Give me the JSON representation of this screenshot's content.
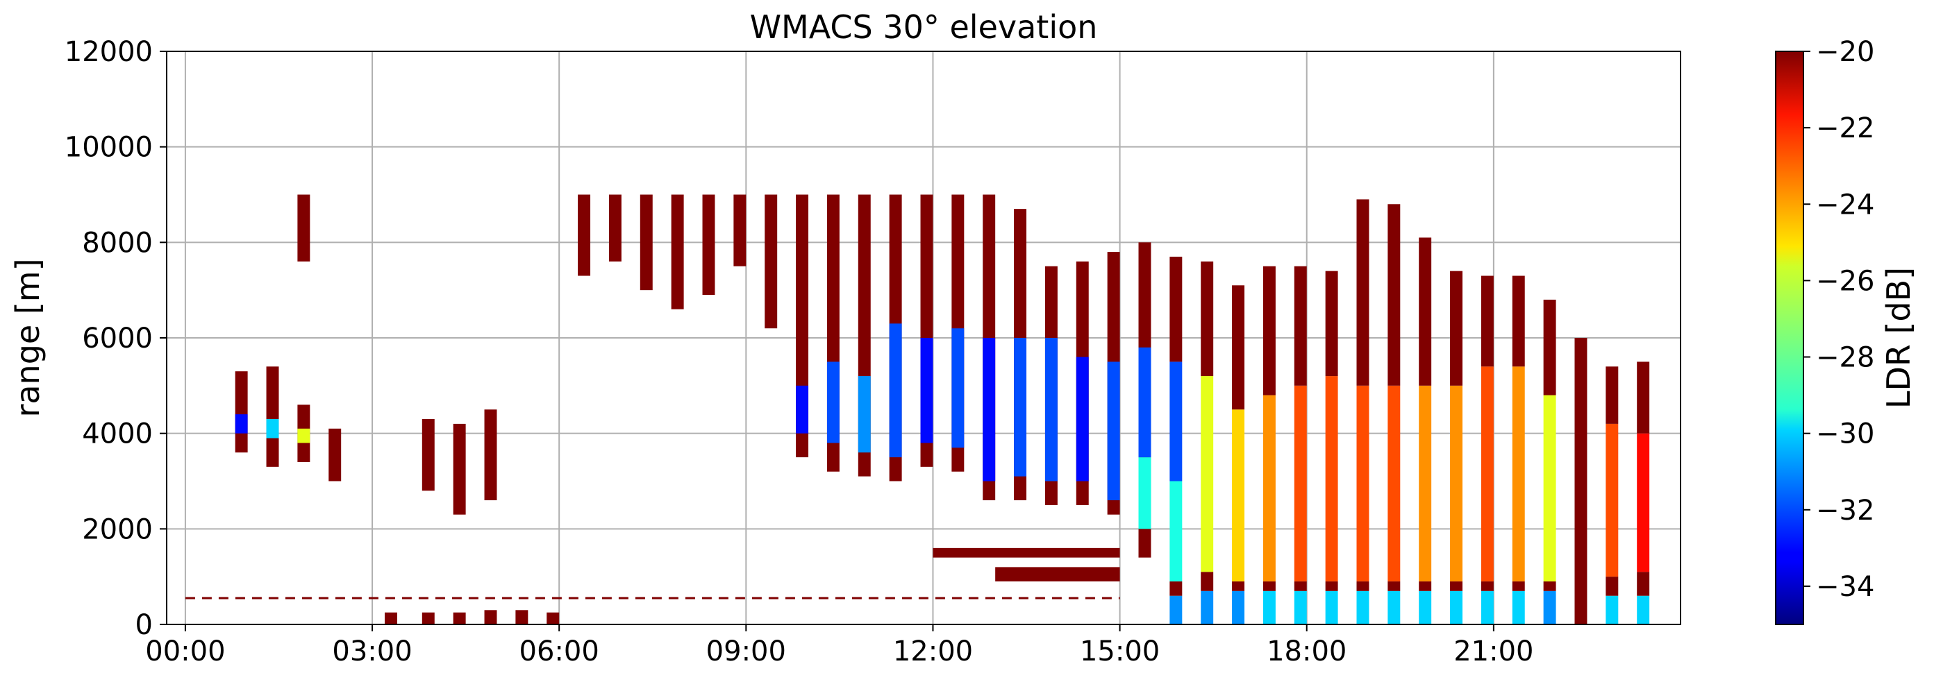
{
  "chart_data": {
    "type": "heatmap",
    "title": "WMACS 30° elevation",
    "xlabel": "",
    "ylabel": "range [m]",
    "xlim_hours": [
      -0.3,
      24.0
    ],
    "ylim": [
      0,
      12000
    ],
    "grid": true,
    "x_ticks": [
      {
        "hour": 0,
        "label": "00:00"
      },
      {
        "hour": 3,
        "label": "03:00"
      },
      {
        "hour": 6,
        "label": "06:00"
      },
      {
        "hour": 9,
        "label": "09:00"
      },
      {
        "hour": 12,
        "label": "12:00"
      },
      {
        "hour": 15,
        "label": "15:00"
      },
      {
        "hour": 18,
        "label": "18:00"
      },
      {
        "hour": 21,
        "label": "21:00"
      }
    ],
    "y_ticks": [
      {
        "value": 0,
        "label": "0"
      },
      {
        "value": 2000,
        "label": "2000"
      },
      {
        "value": 4000,
        "label": "4000"
      },
      {
        "value": 6000,
        "label": "6000"
      },
      {
        "value": 8000,
        "label": "8000"
      },
      {
        "value": 10000,
        "label": "10000"
      },
      {
        "value": 12000,
        "label": "12000"
      }
    ],
    "colorbar": {
      "label": "LDR [dB]",
      "vmin": -35,
      "vmax": -20,
      "colormap": "jet",
      "ticks": [
        {
          "value": -20,
          "label": "−20"
        },
        {
          "value": -22,
          "label": "−22"
        },
        {
          "value": -24,
          "label": "−24"
        },
        {
          "value": -26,
          "label": "−26"
        },
        {
          "value": -28,
          "label": "−28"
        },
        {
          "value": -30,
          "label": "−30"
        },
        {
          "value": -32,
          "label": "−32"
        },
        {
          "value": -34,
          "label": "−34"
        }
      ]
    },
    "clutter_line": {
      "range_m": 550,
      "from_hour": 0.0,
      "to_hour": 15.0,
      "value_db": -20
    },
    "low_echo_bands": [
      {
        "from_hour": 3.2,
        "to_hour": 3.4,
        "bottom": 0,
        "top": 250,
        "value_db": -20
      },
      {
        "from_hour": 3.8,
        "to_hour": 4.0,
        "bottom": 0,
        "top": 250,
        "value_db": -20
      },
      {
        "from_hour": 4.3,
        "to_hour": 4.5,
        "bottom": 0,
        "top": 250,
        "value_db": -20
      },
      {
        "from_hour": 4.8,
        "to_hour": 5.0,
        "bottom": 0,
        "top": 300,
        "value_db": -20
      },
      {
        "from_hour": 5.3,
        "to_hour": 5.5,
        "bottom": 0,
        "top": 300,
        "value_db": -20
      },
      {
        "from_hour": 5.8,
        "to_hour": 6.0,
        "bottom": 0,
        "top": 250,
        "value_db": -20
      },
      {
        "from_hour": 12.0,
        "to_hour": 15.0,
        "bottom": 1400,
        "top": 1600,
        "value_db": -20
      },
      {
        "from_hour": 13.0,
        "to_hour": 15.0,
        "bottom": 900,
        "top": 1200,
        "value_db": -20
      }
    ],
    "profiles": [
      {
        "from_hour": 0.8,
        "to_hour": 1.0,
        "segments": [
          {
            "bottom": 3600,
            "top": 5300,
            "value_db": -20
          },
          {
            "bottom": 4000,
            "top": 4400,
            "value_db": -33
          }
        ]
      },
      {
        "from_hour": 1.3,
        "to_hour": 1.5,
        "segments": [
          {
            "bottom": 3300,
            "top": 5400,
            "value_db": -20
          },
          {
            "bottom": 3900,
            "top": 4300,
            "value_db": -30
          }
        ]
      },
      {
        "from_hour": 1.8,
        "to_hour": 2.0,
        "segments": [
          {
            "bottom": 3400,
            "top": 4600,
            "value_db": -20
          },
          {
            "bottom": 3800,
            "top": 4100,
            "value_db": -26
          },
          {
            "bottom": 7600,
            "top": 9000,
            "value_db": -20
          }
        ]
      },
      {
        "from_hour": 2.3,
        "to_hour": 2.5,
        "segments": [
          {
            "bottom": 3000,
            "top": 4100,
            "value_db": -20
          }
        ]
      },
      {
        "from_hour": 3.8,
        "to_hour": 4.0,
        "segments": [
          {
            "bottom": 2800,
            "top": 4300,
            "value_db": -20
          }
        ]
      },
      {
        "from_hour": 4.3,
        "to_hour": 4.5,
        "segments": [
          {
            "bottom": 2300,
            "top": 4200,
            "value_db": -20
          }
        ]
      },
      {
        "from_hour": 4.8,
        "to_hour": 5.0,
        "segments": [
          {
            "bottom": 2600,
            "top": 4500,
            "value_db": -20
          }
        ]
      },
      {
        "from_hour": 6.3,
        "to_hour": 6.5,
        "segments": [
          {
            "bottom": 7300,
            "top": 9000,
            "value_db": -20
          }
        ]
      },
      {
        "from_hour": 6.8,
        "to_hour": 7.0,
        "segments": [
          {
            "bottom": 7600,
            "top": 9000,
            "value_db": -20
          }
        ]
      },
      {
        "from_hour": 7.3,
        "to_hour": 7.5,
        "segments": [
          {
            "bottom": 7000,
            "top": 9000,
            "value_db": -20
          }
        ]
      },
      {
        "from_hour": 7.8,
        "to_hour": 8.0,
        "segments": [
          {
            "bottom": 6600,
            "top": 9000,
            "value_db": -20
          }
        ]
      },
      {
        "from_hour": 8.3,
        "to_hour": 8.5,
        "segments": [
          {
            "bottom": 6900,
            "top": 9000,
            "value_db": -20
          }
        ]
      },
      {
        "from_hour": 8.8,
        "to_hour": 9.0,
        "segments": [
          {
            "bottom": 7500,
            "top": 9000,
            "value_db": -20
          }
        ]
      },
      {
        "from_hour": 9.3,
        "to_hour": 9.5,
        "segments": [
          {
            "bottom": 6200,
            "top": 9000,
            "value_db": -20
          }
        ]
      },
      {
        "from_hour": 9.8,
        "to_hour": 10.0,
        "segments": [
          {
            "bottom": 3500,
            "top": 9000,
            "value_db": -20
          },
          {
            "bottom": 4000,
            "top": 5000,
            "value_db": -33
          }
        ]
      },
      {
        "from_hour": 10.3,
        "to_hour": 10.5,
        "segments": [
          {
            "bottom": 3200,
            "top": 9000,
            "value_db": -20
          },
          {
            "bottom": 3800,
            "top": 5500,
            "value_db": -32
          }
        ]
      },
      {
        "from_hour": 10.8,
        "to_hour": 11.0,
        "segments": [
          {
            "bottom": 3100,
            "top": 9000,
            "value_db": -20
          },
          {
            "bottom": 3600,
            "top": 5200,
            "value_db": -31
          }
        ]
      },
      {
        "from_hour": 11.3,
        "to_hour": 11.5,
        "segments": [
          {
            "bottom": 3000,
            "top": 9000,
            "value_db": -20
          },
          {
            "bottom": 3500,
            "top": 6300,
            "value_db": -32
          }
        ]
      },
      {
        "from_hour": 11.8,
        "to_hour": 12.0,
        "segments": [
          {
            "bottom": 3300,
            "top": 9000,
            "value_db": -20
          },
          {
            "bottom": 3800,
            "top": 6000,
            "value_db": -33
          }
        ]
      },
      {
        "from_hour": 12.3,
        "to_hour": 12.5,
        "segments": [
          {
            "bottom": 3200,
            "top": 9000,
            "value_db": -20
          },
          {
            "bottom": 3700,
            "top": 6200,
            "value_db": -32
          }
        ]
      },
      {
        "from_hour": 12.8,
        "to_hour": 13.0,
        "segments": [
          {
            "bottom": 2600,
            "top": 9000,
            "value_db": -20
          },
          {
            "bottom": 3000,
            "top": 6000,
            "value_db": -33
          }
        ]
      },
      {
        "from_hour": 13.3,
        "to_hour": 13.5,
        "segments": [
          {
            "bottom": 2600,
            "top": 8700,
            "value_db": -20
          },
          {
            "bottom": 3100,
            "top": 6000,
            "value_db": -32
          }
        ]
      },
      {
        "from_hour": 13.8,
        "to_hour": 14.0,
        "segments": [
          {
            "bottom": 2500,
            "top": 7500,
            "value_db": -20
          },
          {
            "bottom": 3000,
            "top": 6000,
            "value_db": -32
          }
        ]
      },
      {
        "from_hour": 14.3,
        "to_hour": 14.5,
        "segments": [
          {
            "bottom": 2500,
            "top": 7600,
            "value_db": -20
          },
          {
            "bottom": 3000,
            "top": 5600,
            "value_db": -33
          }
        ]
      },
      {
        "from_hour": 14.8,
        "to_hour": 15.0,
        "segments": [
          {
            "bottom": 2300,
            "top": 7800,
            "value_db": -20
          },
          {
            "bottom": 2600,
            "top": 5500,
            "value_db": -32
          }
        ]
      },
      {
        "from_hour": 15.3,
        "to_hour": 15.5,
        "segments": [
          {
            "bottom": 1400,
            "top": 8000,
            "value_db": -20
          },
          {
            "bottom": 2000,
            "top": 3500,
            "value_db": -29
          },
          {
            "bottom": 3500,
            "top": 5800,
            "value_db": -32
          }
        ]
      },
      {
        "from_hour": 15.8,
        "to_hour": 16.0,
        "segments": [
          {
            "bottom": 0,
            "top": 600,
            "value_db": -31
          },
          {
            "bottom": 600,
            "top": 900,
            "value_db": -20
          },
          {
            "bottom": 900,
            "top": 3000,
            "value_db": -29
          },
          {
            "bottom": 3000,
            "top": 5500,
            "value_db": -32
          },
          {
            "bottom": 5500,
            "top": 7700,
            "value_db": -20
          }
        ]
      },
      {
        "from_hour": 16.3,
        "to_hour": 16.5,
        "segments": [
          {
            "bottom": 0,
            "top": 700,
            "value_db": -31
          },
          {
            "bottom": 700,
            "top": 1100,
            "value_db": -20
          },
          {
            "bottom": 1100,
            "top": 5200,
            "value_db": -26
          },
          {
            "bottom": 5200,
            "top": 7600,
            "value_db": -20
          }
        ]
      },
      {
        "from_hour": 16.8,
        "to_hour": 17.0,
        "segments": [
          {
            "bottom": 0,
            "top": 700,
            "value_db": -31
          },
          {
            "bottom": 700,
            "top": 900,
            "value_db": -20
          },
          {
            "bottom": 900,
            "top": 4500,
            "value_db": -25
          },
          {
            "bottom": 4500,
            "top": 7100,
            "value_db": -20
          }
        ]
      },
      {
        "from_hour": 17.3,
        "to_hour": 17.5,
        "segments": [
          {
            "bottom": 0,
            "top": 700,
            "value_db": -30
          },
          {
            "bottom": 700,
            "top": 900,
            "value_db": -20
          },
          {
            "bottom": 900,
            "top": 4800,
            "value_db": -24
          },
          {
            "bottom": 4800,
            "top": 7500,
            "value_db": -20
          }
        ]
      },
      {
        "from_hour": 17.8,
        "to_hour": 18.0,
        "segments": [
          {
            "bottom": 0,
            "top": 700,
            "value_db": -30
          },
          {
            "bottom": 700,
            "top": 900,
            "value_db": -20
          },
          {
            "bottom": 900,
            "top": 5000,
            "value_db": -23
          },
          {
            "bottom": 5000,
            "top": 7500,
            "value_db": -20
          }
        ]
      },
      {
        "from_hour": 18.3,
        "to_hour": 18.5,
        "segments": [
          {
            "bottom": 0,
            "top": 700,
            "value_db": -30
          },
          {
            "bottom": 700,
            "top": 900,
            "value_db": -20
          },
          {
            "bottom": 900,
            "top": 5200,
            "value_db": -23
          },
          {
            "bottom": 5200,
            "top": 7400,
            "value_db": -20
          }
        ]
      },
      {
        "from_hour": 18.8,
        "to_hour": 19.0,
        "segments": [
          {
            "bottom": 0,
            "top": 700,
            "value_db": -30
          },
          {
            "bottom": 700,
            "top": 900,
            "value_db": -20
          },
          {
            "bottom": 900,
            "top": 5000,
            "value_db": -23
          },
          {
            "bottom": 5000,
            "top": 8900,
            "value_db": -20
          }
        ]
      },
      {
        "from_hour": 19.3,
        "to_hour": 19.5,
        "segments": [
          {
            "bottom": 0,
            "top": 700,
            "value_db": -30
          },
          {
            "bottom": 700,
            "top": 900,
            "value_db": -20
          },
          {
            "bottom": 900,
            "top": 5000,
            "value_db": -23
          },
          {
            "bottom": 5000,
            "top": 8800,
            "value_db": -20
          }
        ]
      },
      {
        "from_hour": 19.8,
        "to_hour": 20.0,
        "segments": [
          {
            "bottom": 0,
            "top": 700,
            "value_db": -30
          },
          {
            "bottom": 700,
            "top": 900,
            "value_db": -20
          },
          {
            "bottom": 900,
            "top": 5000,
            "value_db": -24
          },
          {
            "bottom": 5000,
            "top": 8100,
            "value_db": -20
          }
        ]
      },
      {
        "from_hour": 20.3,
        "to_hour": 20.5,
        "segments": [
          {
            "bottom": 0,
            "top": 700,
            "value_db": -30
          },
          {
            "bottom": 700,
            "top": 900,
            "value_db": -20
          },
          {
            "bottom": 900,
            "top": 5000,
            "value_db": -24
          },
          {
            "bottom": 5000,
            "top": 7400,
            "value_db": -20
          }
        ]
      },
      {
        "from_hour": 20.8,
        "to_hour": 21.0,
        "segments": [
          {
            "bottom": 0,
            "top": 700,
            "value_db": -30
          },
          {
            "bottom": 700,
            "top": 900,
            "value_db": -20
          },
          {
            "bottom": 900,
            "top": 5400,
            "value_db": -23
          },
          {
            "bottom": 5400,
            "top": 7300,
            "value_db": -20
          }
        ]
      },
      {
        "from_hour": 21.3,
        "to_hour": 21.5,
        "segments": [
          {
            "bottom": 0,
            "top": 700,
            "value_db": -30
          },
          {
            "bottom": 700,
            "top": 900,
            "value_db": -20
          },
          {
            "bottom": 900,
            "top": 5400,
            "value_db": -24
          },
          {
            "bottom": 5400,
            "top": 7300,
            "value_db": -20
          }
        ]
      },
      {
        "from_hour": 21.8,
        "to_hour": 22.0,
        "segments": [
          {
            "bottom": 0,
            "top": 700,
            "value_db": -31
          },
          {
            "bottom": 700,
            "top": 900,
            "value_db": -20
          },
          {
            "bottom": 900,
            "top": 4800,
            "value_db": -26
          },
          {
            "bottom": 4800,
            "top": 6800,
            "value_db": -20
          }
        ]
      },
      {
        "from_hour": 22.3,
        "to_hour": 22.5,
        "segments": [
          {
            "bottom": 0,
            "top": 6000,
            "value_db": -20
          }
        ]
      },
      {
        "from_hour": 22.8,
        "to_hour": 23.0,
        "segments": [
          {
            "bottom": 0,
            "top": 600,
            "value_db": -30
          },
          {
            "bottom": 600,
            "top": 1000,
            "value_db": -20
          },
          {
            "bottom": 1000,
            "top": 4200,
            "value_db": -23
          },
          {
            "bottom": 4200,
            "top": 5400,
            "value_db": -20
          }
        ]
      },
      {
        "from_hour": 23.3,
        "to_hour": 23.5,
        "segments": [
          {
            "bottom": 0,
            "top": 600,
            "value_db": -30
          },
          {
            "bottom": 600,
            "top": 1100,
            "value_db": -20
          },
          {
            "bottom": 1100,
            "top": 4000,
            "value_db": -22
          },
          {
            "bottom": 4000,
            "top": 5500,
            "value_db": -20
          }
        ]
      }
    ]
  }
}
